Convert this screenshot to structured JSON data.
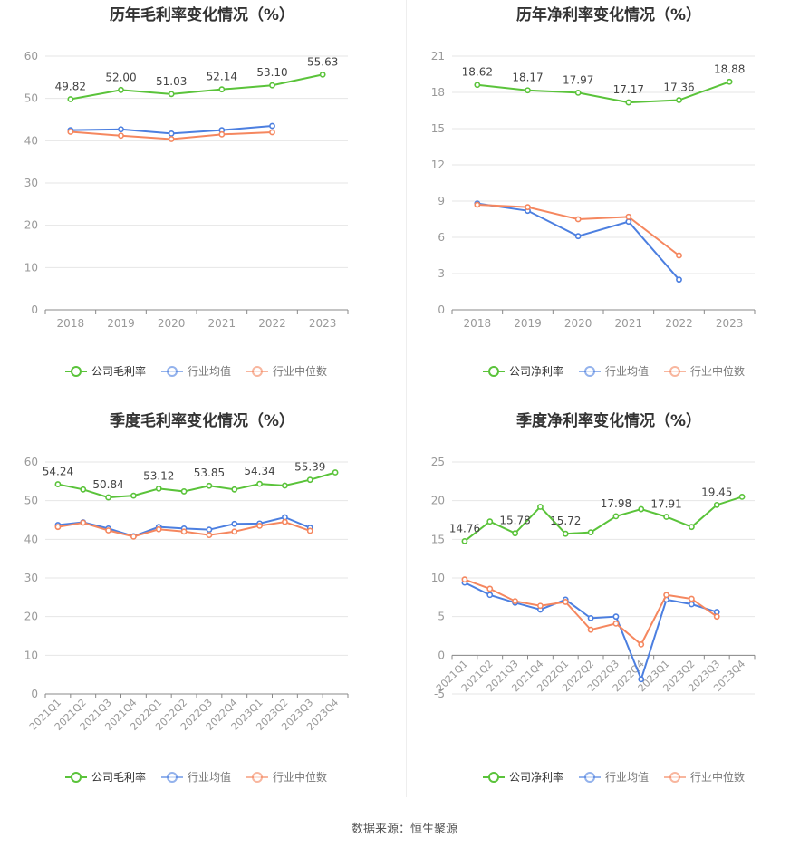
{
  "colors": {
    "company": "#5ac33a",
    "avg": "#4c7fe0",
    "median": "#f5875f",
    "grid": "#e6e6e6",
    "axis": "#999999"
  },
  "source_text": "数据来源：恒生聚源",
  "chart_data": [
    {
      "type": "line",
      "title": "历年毛利率变化情况（%）",
      "categories": [
        "2018",
        "2019",
        "2020",
        "2021",
        "2022",
        "2023"
      ],
      "ylim": [
        0,
        60
      ],
      "yticks": [
        0,
        10,
        20,
        30,
        40,
        50,
        60
      ],
      "x_label_rotate": false,
      "series": [
        {
          "name": "公司毛利率",
          "role": "company",
          "values": [
            49.82,
            52.0,
            51.03,
            52.14,
            53.1,
            55.63
          ],
          "labels": [
            "49.82",
            "52.00",
            "51.03",
            "52.14",
            "53.10",
            "55.63"
          ]
        },
        {
          "name": "行业均值",
          "role": "avg",
          "values": [
            42.5,
            42.7,
            41.7,
            42.5,
            43.5,
            null
          ]
        },
        {
          "name": "行业中位数",
          "role": "median",
          "values": [
            42.1,
            41.2,
            40.4,
            41.5,
            42.0,
            null
          ]
        }
      ]
    },
    {
      "type": "line",
      "title": "历年净利率变化情况（%）",
      "categories": [
        "2018",
        "2019",
        "2020",
        "2021",
        "2022",
        "2023"
      ],
      "ylim": [
        0,
        21
      ],
      "yticks": [
        0,
        3,
        6,
        9,
        12,
        15,
        18,
        21
      ],
      "x_label_rotate": false,
      "series": [
        {
          "name": "公司净利率",
          "role": "company",
          "values": [
            18.62,
            18.17,
            17.97,
            17.17,
            17.36,
            18.88
          ],
          "labels": [
            "18.62",
            "18.17",
            "17.97",
            "17.17",
            "17.36",
            "18.88"
          ]
        },
        {
          "name": "行业均值",
          "role": "avg",
          "values": [
            8.8,
            8.2,
            6.1,
            7.3,
            2.5,
            null
          ]
        },
        {
          "name": "行业中位数",
          "role": "median",
          "values": [
            8.7,
            8.5,
            7.5,
            7.7,
            4.5,
            null
          ]
        }
      ]
    },
    {
      "type": "line",
      "title": "季度毛利率变化情况（%）",
      "categories": [
        "2021Q1",
        "2021Q2",
        "2021Q3",
        "2021Q4",
        "2022Q1",
        "2022Q2",
        "2022Q3",
        "2022Q4",
        "2023Q1",
        "2023Q2",
        "2023Q3",
        "2023Q4"
      ],
      "ylim": [
        0,
        60
      ],
      "yticks": [
        0,
        10,
        20,
        30,
        40,
        50,
        60
      ],
      "x_label_rotate": true,
      "series": [
        {
          "name": "公司毛利率",
          "role": "company",
          "values": [
            54.24,
            52.9,
            50.84,
            51.3,
            53.12,
            52.4,
            53.85,
            52.9,
            54.34,
            53.9,
            55.39,
            57.3
          ],
          "labels": [
            "54.24",
            null,
            "50.84",
            null,
            "53.12",
            null,
            "53.85",
            null,
            "54.34",
            null,
            "55.39",
            null
          ]
        },
        {
          "name": "行业均值",
          "role": "avg",
          "values": [
            43.7,
            44.4,
            42.8,
            40.8,
            43.2,
            42.8,
            42.5,
            44.0,
            44.1,
            45.7,
            43.0,
            null
          ]
        },
        {
          "name": "行业中位数",
          "role": "median",
          "values": [
            43.2,
            44.3,
            42.3,
            40.7,
            42.6,
            42.0,
            41.1,
            42.0,
            43.5,
            44.5,
            42.2,
            null
          ]
        }
      ]
    },
    {
      "type": "line",
      "title": "季度净利率变化情况（%）",
      "categories": [
        "2021Q1",
        "2021Q2",
        "2021Q3",
        "2021Q4",
        "2022Q1",
        "2022Q2",
        "2022Q3",
        "2022Q4",
        "2023Q1",
        "2023Q2",
        "2023Q3",
        "2023Q4"
      ],
      "ylim": [
        -5,
        25
      ],
      "yticks": [
        -5,
        0,
        5,
        10,
        15,
        20,
        25
      ],
      "x_label_rotate": true,
      "series": [
        {
          "name": "公司净利率",
          "role": "company",
          "values": [
            14.76,
            17.3,
            15.78,
            19.2,
            15.72,
            15.9,
            17.98,
            18.9,
            17.91,
            16.6,
            19.45,
            20.5
          ],
          "labels": [
            "14.76",
            null,
            "15.78",
            null,
            "15.72",
            null,
            "17.98",
            null,
            "17.91",
            null,
            "19.45",
            null
          ]
        },
        {
          "name": "行业均值",
          "role": "avg",
          "values": [
            9.4,
            7.8,
            6.8,
            5.9,
            7.2,
            4.8,
            5.0,
            -3.1,
            7.2,
            6.6,
            5.6,
            null
          ]
        },
        {
          "name": "行业中位数",
          "role": "median",
          "values": [
            9.8,
            8.6,
            7.0,
            6.4,
            6.9,
            3.3,
            4.1,
            1.4,
            7.8,
            7.3,
            5.0,
            null
          ]
        }
      ]
    }
  ]
}
